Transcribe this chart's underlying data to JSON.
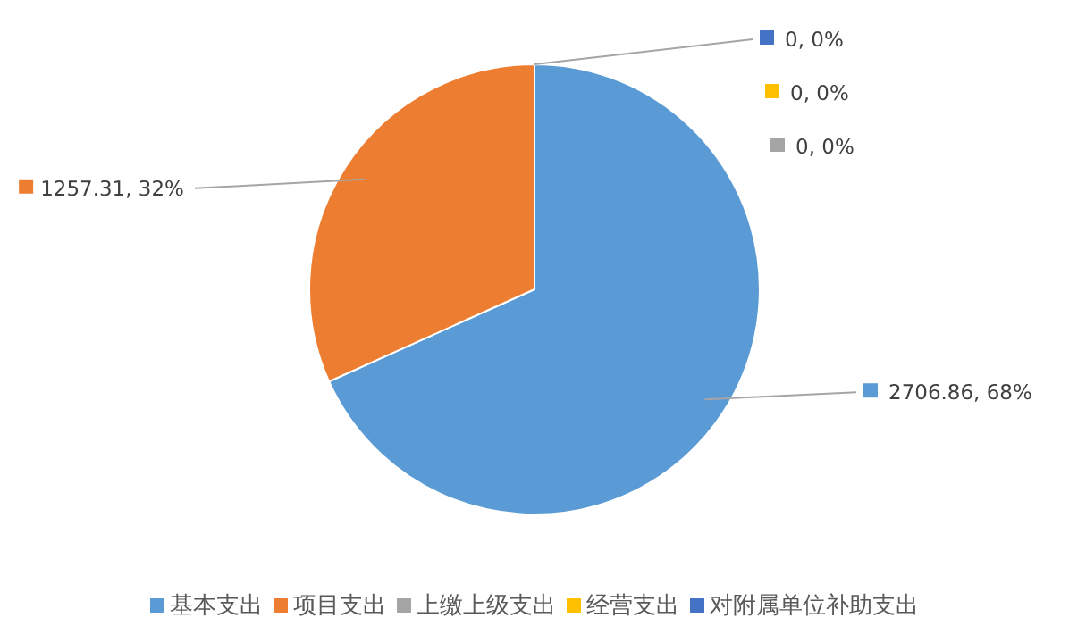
{
  "chart_data": {
    "type": "pie",
    "categories": [
      "基本支出",
      "项目支出",
      "上缴上级支出",
      "经营支出",
      "对附属单位补助支出"
    ],
    "values": [
      2706.86,
      1257.31,
      0,
      0,
      0
    ],
    "colors": [
      "#5b9bd5",
      "#ed7d31",
      "#a5a5a5",
      "#ffc000",
      "#4472c4"
    ],
    "value_labels": [
      "2706.86, 68%",
      "1257.31, 32%",
      "0, 0%",
      "0, 0%",
      "0, 0%"
    ],
    "legend": "bottom"
  }
}
